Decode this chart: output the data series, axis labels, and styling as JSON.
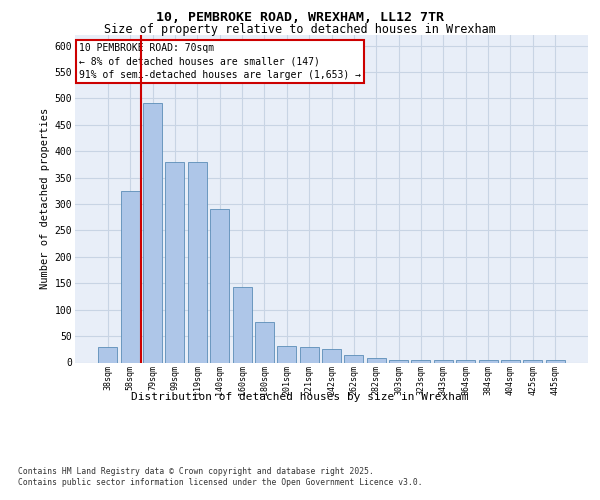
{
  "title_line1": "10, PEMBROKE ROAD, WREXHAM, LL12 7TR",
  "title_line2": "Size of property relative to detached houses in Wrexham",
  "xlabel": "Distribution of detached houses by size in Wrexham",
  "ylabel": "Number of detached properties",
  "categories": [
    "38sqm",
    "58sqm",
    "79sqm",
    "99sqm",
    "119sqm",
    "140sqm",
    "160sqm",
    "180sqm",
    "201sqm",
    "221sqm",
    "242sqm",
    "262sqm",
    "282sqm",
    "303sqm",
    "323sqm",
    "343sqm",
    "364sqm",
    "384sqm",
    "404sqm",
    "425sqm",
    "445sqm"
  ],
  "values": [
    30,
    325,
    492,
    380,
    380,
    290,
    143,
    77,
    31,
    29,
    26,
    15,
    8,
    5,
    5,
    5,
    4,
    4,
    4,
    4,
    5
  ],
  "bar_color": "#aec6e8",
  "bar_edge_color": "#5b8db8",
  "grid_color": "#c8d4e4",
  "background_color": "#e8eef8",
  "vline_color": "#cc0000",
  "annotation_text": "10 PEMBROKE ROAD: 70sqm\n← 8% of detached houses are smaller (147)\n91% of semi-detached houses are larger (1,653) →",
  "annotation_box_color": "#ffffff",
  "annotation_box_edge": "#cc0000",
  "ylim": [
    0,
    620
  ],
  "yticks": [
    0,
    50,
    100,
    150,
    200,
    250,
    300,
    350,
    400,
    450,
    500,
    550,
    600
  ],
  "footnote": "Contains HM Land Registry data © Crown copyright and database right 2025.\nContains public sector information licensed under the Open Government Licence v3.0."
}
